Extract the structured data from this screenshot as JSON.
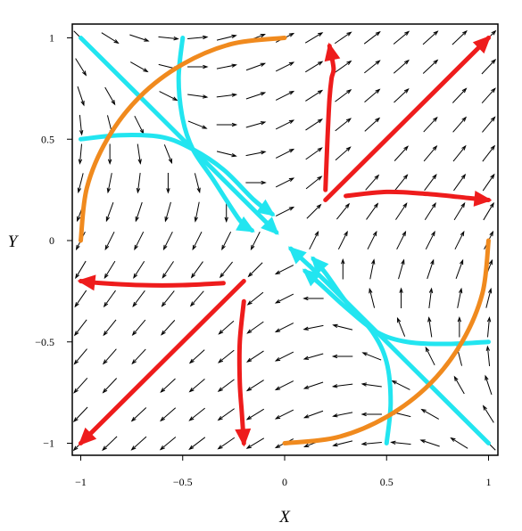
{
  "chart_data": {
    "type": "vector-field-phase-portrait",
    "xlabel": "X",
    "ylabel": "Y",
    "xlim": [
      -1.05,
      1.05
    ],
    "ylim": [
      -1.05,
      1.05
    ],
    "x_ticks": [
      {
        "value": -1,
        "label": "−1"
      },
      {
        "value": -0.5,
        "label": "−0.5"
      },
      {
        "value": 0,
        "label": "0"
      },
      {
        "value": 0.5,
        "label": "0.5"
      },
      {
        "value": 1,
        "label": "1"
      }
    ],
    "y_ticks": [
      {
        "value": 1,
        "label": "1"
      },
      {
        "value": 0.5,
        "label": "0.5"
      },
      {
        "value": 0,
        "label": "0"
      },
      {
        "value": -0.5,
        "label": "−0.5"
      },
      {
        "value": -1,
        "label": "−1"
      }
    ],
    "grid": false,
    "field": {
      "description": "direction field of a saddle-type linear system",
      "color": "#000000",
      "x_range": [
        -1,
        1
      ],
      "y_range": [
        -1,
        1
      ],
      "samples": 15
    },
    "trajectories": [
      {
        "group": "outgoing",
        "color": "#ee1c1c",
        "points": [
          [
            0.2,
            0.2
          ],
          [
            0.6,
            0.6
          ],
          [
            1.0,
            1.0
          ]
        ],
        "arrow": "end"
      },
      {
        "group": "outgoing",
        "color": "#ee1c1c",
        "points": [
          [
            0.2,
            0.25
          ],
          [
            0.21,
            0.5
          ],
          [
            0.22,
            0.7
          ],
          [
            0.23,
            0.8
          ],
          [
            0.24,
            0.85
          ],
          [
            0.22,
            0.96
          ]
        ],
        "arrow": "end"
      },
      {
        "group": "outgoing",
        "color": "#ee1c1c",
        "points": [
          [
            0.3,
            0.22
          ],
          [
            0.5,
            0.24
          ],
          [
            0.7,
            0.23
          ],
          [
            0.9,
            0.21
          ],
          [
            1.0,
            0.2
          ]
        ],
        "arrow": "end"
      },
      {
        "group": "outgoing",
        "color": "#ee1c1c",
        "points": [
          [
            -0.2,
            -0.2
          ],
          [
            -0.6,
            -0.6
          ],
          [
            -1.0,
            -1.0
          ]
        ],
        "arrow": "end"
      },
      {
        "group": "outgoing",
        "color": "#ee1c1c",
        "points": [
          [
            -0.2,
            -0.3
          ],
          [
            -0.22,
            -0.5
          ],
          [
            -0.22,
            -0.7
          ],
          [
            -0.21,
            -0.85
          ],
          [
            -0.2,
            -1.0
          ]
        ],
        "arrow": "end"
      },
      {
        "group": "outgoing",
        "color": "#ee1c1c",
        "points": [
          [
            -0.3,
            -0.21
          ],
          [
            -0.5,
            -0.22
          ],
          [
            -0.7,
            -0.22
          ],
          [
            -0.9,
            -0.21
          ],
          [
            -1.0,
            -0.2
          ]
        ],
        "arrow": "end"
      },
      {
        "group": "incoming",
        "color": "#22e5f0",
        "points": [
          [
            -1.0,
            1.0
          ],
          [
            -0.6,
            0.6
          ],
          [
            -0.2,
            0.2
          ],
          [
            -0.04,
            0.04
          ]
        ],
        "arrow": "end"
      },
      {
        "group": "incoming",
        "color": "#22e5f0",
        "points": [
          [
            -0.5,
            1.0
          ],
          [
            -0.52,
            0.8
          ],
          [
            -0.5,
            0.6
          ],
          [
            -0.45,
            0.45
          ],
          [
            -0.35,
            0.3
          ],
          [
            -0.22,
            0.1
          ],
          [
            -0.16,
            0.05
          ]
        ],
        "arrow": "end"
      },
      {
        "group": "incoming",
        "color": "#22e5f0",
        "points": [
          [
            -1.0,
            0.5
          ],
          [
            -0.8,
            0.52
          ],
          [
            -0.6,
            0.51
          ],
          [
            -0.45,
            0.45
          ],
          [
            -0.3,
            0.35
          ],
          [
            -0.15,
            0.2
          ],
          [
            -0.06,
            0.13
          ]
        ],
        "arrow": "end"
      },
      {
        "group": "incoming",
        "color": "#22e5f0",
        "points": [
          [
            1.0,
            -1.0
          ],
          [
            0.6,
            -0.6
          ],
          [
            0.2,
            -0.2
          ],
          [
            0.03,
            -0.04
          ]
        ],
        "arrow": "end"
      },
      {
        "group": "incoming",
        "color": "#22e5f0",
        "points": [
          [
            0.5,
            -1.0
          ],
          [
            0.52,
            -0.8
          ],
          [
            0.5,
            -0.6
          ],
          [
            0.43,
            -0.45
          ],
          [
            0.3,
            -0.3
          ],
          [
            0.2,
            -0.16
          ],
          [
            0.14,
            -0.09
          ]
        ],
        "arrow": "end"
      },
      {
        "group": "incoming",
        "color": "#22e5f0",
        "points": [
          [
            1.0,
            -0.5
          ],
          [
            0.8,
            -0.51
          ],
          [
            0.6,
            -0.5
          ],
          [
            0.45,
            -0.45
          ],
          [
            0.3,
            -0.33
          ],
          [
            0.18,
            -0.22
          ],
          [
            0.1,
            -0.15
          ]
        ],
        "arrow": "end"
      },
      {
        "group": "orbit",
        "color": "#f08a1e",
        "points": [
          [
            0.0,
            1.0
          ],
          [
            -0.26,
            0.97
          ],
          [
            -0.5,
            0.87
          ],
          [
            -0.71,
            0.71
          ],
          [
            -0.87,
            0.5
          ],
          [
            -0.97,
            0.26
          ],
          [
            -1.0,
            0.0
          ]
        ],
        "arrow": "none"
      },
      {
        "group": "orbit",
        "color": "#f08a1e",
        "points": [
          [
            0.0,
            -1.0
          ],
          [
            0.26,
            -0.97
          ],
          [
            0.5,
            -0.87
          ],
          [
            0.71,
            -0.71
          ],
          [
            0.87,
            -0.5
          ],
          [
            0.97,
            -0.26
          ],
          [
            1.0,
            0.0
          ]
        ],
        "arrow": "none"
      }
    ]
  }
}
